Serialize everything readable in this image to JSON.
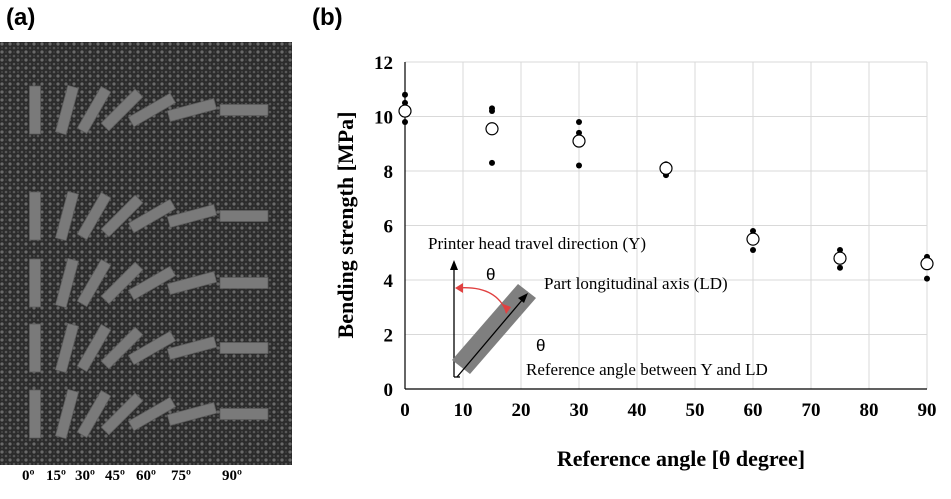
{
  "panels": {
    "a": "(a)",
    "b": "(b)"
  },
  "photo": {
    "angle_labels": [
      "0º",
      "15º",
      "30º",
      "45º",
      "60º",
      "75º",
      "90º"
    ],
    "colors": {
      "background": "#2b2b2b",
      "specimen": "#7a7a7a"
    }
  },
  "chart_data": {
    "type": "scatter",
    "xlabel": "Reference angle [θ degree]",
    "ylabel": "Bending strength [MPa]",
    "xlim": [
      0,
      90
    ],
    "ylim": [
      0,
      12
    ],
    "xticks": [
      0,
      10,
      20,
      30,
      40,
      50,
      60,
      70,
      80,
      90
    ],
    "yticks": [
      0,
      2,
      4,
      6,
      8,
      10,
      12
    ],
    "grid": true,
    "series": [
      {
        "marker": "filled-dot",
        "points": [
          [
            0,
            10.8
          ],
          [
            0,
            10.5
          ],
          [
            0,
            9.8
          ],
          [
            15,
            10.3
          ],
          [
            15,
            10.2
          ],
          [
            15,
            8.3
          ],
          [
            30,
            9.8
          ],
          [
            30,
            9.4
          ],
          [
            30,
            8.2
          ],
          [
            45,
            8.25
          ],
          [
            45,
            8.05
          ],
          [
            45,
            7.85
          ],
          [
            60,
            5.8
          ],
          [
            60,
            5.1
          ],
          [
            75,
            5.1
          ],
          [
            75,
            4.45
          ],
          [
            90,
            4.85
          ],
          [
            90,
            4.7
          ],
          [
            90,
            4.05
          ]
        ]
      },
      {
        "marker": "open-circle",
        "points": [
          [
            0,
            10.2
          ],
          [
            15,
            9.55
          ],
          [
            30,
            9.1
          ],
          [
            45,
            8.1
          ],
          [
            60,
            5.5
          ],
          [
            75,
            4.8
          ],
          [
            90,
            4.6
          ]
        ]
      }
    ],
    "annotations": {
      "printer_head": "Printer head travel direction (Y)",
      "theta": "θ",
      "longitudinal": "Part longitudinal axis (LD)",
      "theta2": "θ",
      "reference": "Reference angle between Y and LD"
    },
    "colors": {
      "arc": "#e04040",
      "part": "#7f7f7f",
      "grid": "#d9d9d9"
    }
  }
}
